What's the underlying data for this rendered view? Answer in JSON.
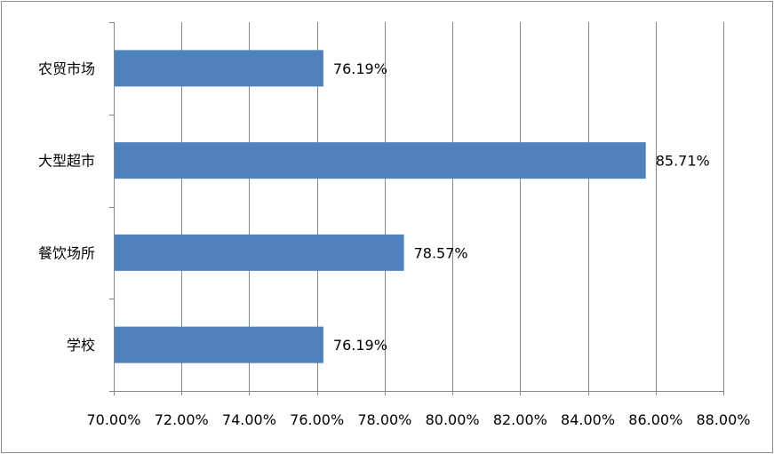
{
  "chart_data": {
    "type": "bar",
    "orientation": "horizontal",
    "categories": [
      "农贸市场",
      "大型超市",
      "餐饮场所",
      "学校"
    ],
    "values": [
      76.19,
      85.71,
      78.57,
      76.19
    ],
    "value_labels": [
      "76.19%",
      "85.71%",
      "78.57%",
      "76.19%"
    ],
    "xlim": [
      70,
      88
    ],
    "x_ticks": [
      "70.00%",
      "72.00%",
      "74.00%",
      "76.00%",
      "78.00%",
      "80.00%",
      "82.00%",
      "84.00%",
      "86.00%",
      "88.00%"
    ],
    "title": "",
    "xlabel": "",
    "ylabel": "",
    "grid": "vertical",
    "legend": "none",
    "bar_color": "#4F81BD"
  }
}
